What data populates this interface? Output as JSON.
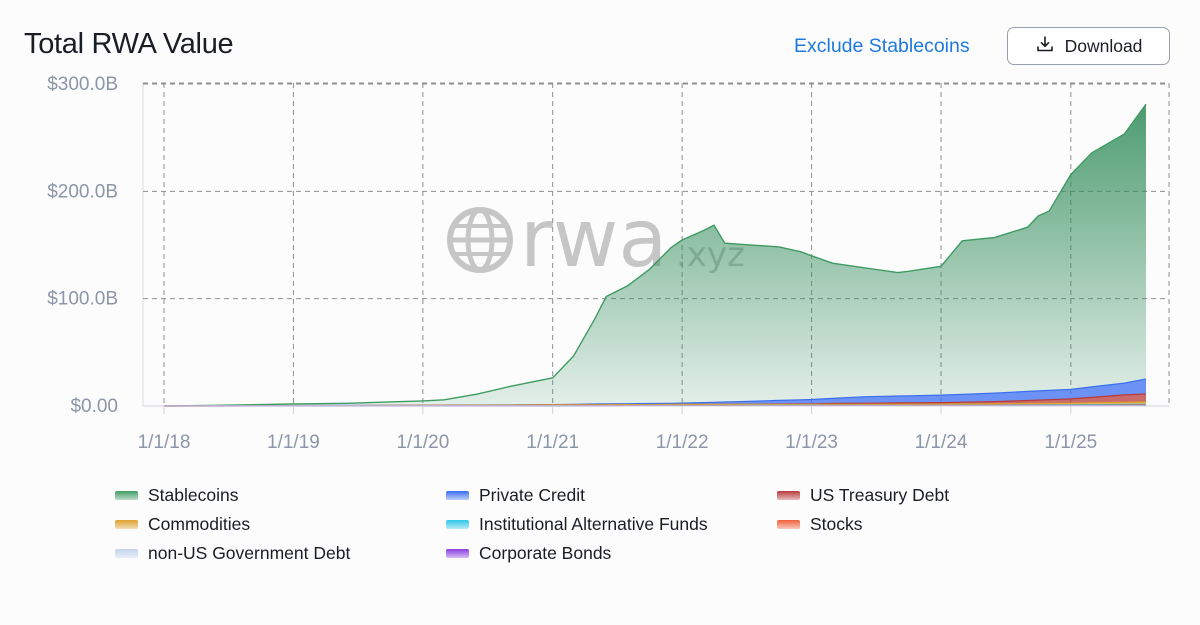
{
  "header": {
    "title": "Total RWA Value",
    "exclude_label": "Exclude Stablecoins",
    "download_label": "Download"
  },
  "watermark": {
    "text_main": "rwa",
    "text_suffix": ".xyz"
  },
  "chart_data": {
    "type": "area",
    "stacked": true,
    "title": "Total RWA Value",
    "x_unit": "date",
    "x_ticks": [
      "1/1/18",
      "1/1/19",
      "1/1/20",
      "1/1/21",
      "1/1/22",
      "1/1/23",
      "1/1/24",
      "1/1/25"
    ],
    "x_range": [
      "2018-01-01",
      "2025-08-01"
    ],
    "y_ticks": [
      "$0.00",
      "$100.0B",
      "$200.0B",
      "$300.0B"
    ],
    "ylim": [
      0,
      300
    ],
    "y_unit": "billions USD",
    "grid": true,
    "legend_position": "bottom",
    "series": [
      {
        "name": "Stablecoins",
        "color": "#3f9b62",
        "points": [
          [
            "2018-01-01",
            0
          ],
          [
            "2018-06-01",
            0.5
          ],
          [
            "2019-01-01",
            1.5
          ],
          [
            "2019-06-01",
            2
          ],
          [
            "2020-01-01",
            4
          ],
          [
            "2020-03-01",
            5
          ],
          [
            "2020-06-01",
            10
          ],
          [
            "2020-09-01",
            17
          ],
          [
            "2021-01-01",
            25
          ],
          [
            "2021-03-01",
            45
          ],
          [
            "2021-05-01",
            80
          ],
          [
            "2021-06-01",
            100
          ],
          [
            "2021-08-01",
            110
          ],
          [
            "2021-10-01",
            125
          ],
          [
            "2021-12-01",
            145
          ],
          [
            "2022-01-01",
            152
          ],
          [
            "2022-03-01",
            160
          ],
          [
            "2022-04-01",
            165
          ],
          [
            "2022-05-01",
            148
          ],
          [
            "2022-08-01",
            145
          ],
          [
            "2022-10-01",
            143
          ],
          [
            "2022-12-01",
            138
          ],
          [
            "2023-03-01",
            126
          ],
          [
            "2023-06-01",
            120
          ],
          [
            "2023-09-01",
            115
          ],
          [
            "2023-10-01",
            116
          ],
          [
            "2024-01-01",
            120
          ],
          [
            "2024-03-01",
            143
          ],
          [
            "2024-06-01",
            145
          ],
          [
            "2024-09-01",
            153
          ],
          [
            "2024-10-01",
            163
          ],
          [
            "2024-11-01",
            167
          ],
          [
            "2025-01-01",
            200
          ],
          [
            "2025-03-01",
            218
          ],
          [
            "2025-06-01",
            232
          ],
          [
            "2025-08-01",
            256
          ]
        ]
      },
      {
        "name": "Private Credit",
        "color": "#3b6ff0",
        "points": [
          [
            "2018-01-01",
            0
          ],
          [
            "2021-01-01",
            0.3
          ],
          [
            "2021-06-01",
            0.8
          ],
          [
            "2022-01-01",
            1.2
          ],
          [
            "2022-06-01",
            2.5
          ],
          [
            "2023-01-01",
            4
          ],
          [
            "2023-06-01",
            6
          ],
          [
            "2024-01-01",
            7
          ],
          [
            "2024-06-01",
            8
          ],
          [
            "2025-01-01",
            9
          ],
          [
            "2025-06-01",
            11
          ],
          [
            "2025-08-01",
            14
          ]
        ]
      },
      {
        "name": "US Treasury Debt",
        "color": "#b83a3a",
        "points": [
          [
            "2018-01-01",
            0
          ],
          [
            "2022-06-01",
            0
          ],
          [
            "2023-01-01",
            0.5
          ],
          [
            "2023-06-01",
            1
          ],
          [
            "2024-01-01",
            1.5
          ],
          [
            "2024-06-01",
            2
          ],
          [
            "2025-01-01",
            4
          ],
          [
            "2025-06-01",
            7
          ],
          [
            "2025-08-01",
            7.5
          ]
        ]
      },
      {
        "name": "Commodities",
        "color": "#e0a12e",
        "points": [
          [
            "2018-01-01",
            0
          ],
          [
            "2020-01-01",
            0.3
          ],
          [
            "2022-01-01",
            1
          ],
          [
            "2023-01-01",
            1
          ],
          [
            "2024-01-01",
            1
          ],
          [
            "2025-01-01",
            1.5
          ],
          [
            "2025-08-01",
            2
          ]
        ]
      },
      {
        "name": "Institutional Alternative Funds",
        "color": "#2fc6e6",
        "points": [
          [
            "2018-01-01",
            0
          ],
          [
            "2024-01-01",
            0.2
          ],
          [
            "2025-01-01",
            0.5
          ],
          [
            "2025-08-01",
            0.8
          ]
        ]
      },
      {
        "name": "Stocks",
        "color": "#f0603a",
        "points": [
          [
            "2018-01-01",
            0
          ],
          [
            "2025-01-01",
            0.2
          ],
          [
            "2025-08-01",
            0.5
          ]
        ]
      },
      {
        "name": "non-US Government Debt",
        "color": "#c2d3ec",
        "points": [
          [
            "2018-01-01",
            0
          ],
          [
            "2025-08-01",
            0.3
          ]
        ]
      },
      {
        "name": "Corporate Bonds",
        "color": "#8a3ce0",
        "points": [
          [
            "2018-01-01",
            0
          ],
          [
            "2025-08-01",
            0.1
          ]
        ]
      }
    ]
  }
}
